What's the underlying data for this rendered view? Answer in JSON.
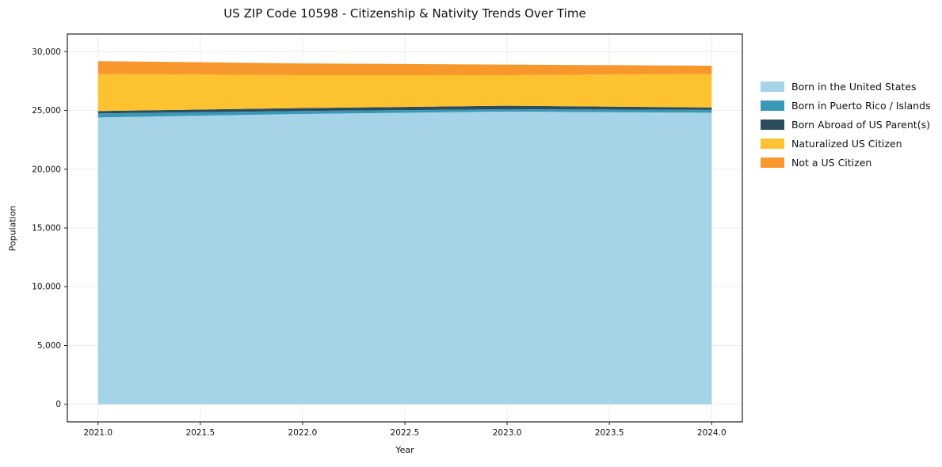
{
  "title": "US ZIP Code 10598 - Citizenship & Nativity Trends Over Time",
  "chart_data": {
    "type": "area",
    "stacked": true,
    "title": "US ZIP Code 10598 - Citizenship & Nativity Trends Over Time",
    "xlabel": "Year",
    "ylabel": "Population",
    "xlim": [
      2021,
      2024
    ],
    "ylim": [
      0,
      30000
    ],
    "grid": true,
    "legend_position": "right",
    "x": [
      2021,
      2022,
      2023,
      2024
    ],
    "series": [
      {
        "name": "Born in the United States",
        "color": "#a5d3e7",
        "values": [
          24400,
          24700,
          24900,
          24800
        ]
      },
      {
        "name": "Born in Puerto Rico / Islands",
        "color": "#3b99b8",
        "values": [
          350,
          250,
          200,
          250
        ]
      },
      {
        "name": "Born Abroad of US Parent(s)",
        "color": "#2c4d5e",
        "values": [
          200,
          250,
          300,
          200
        ]
      },
      {
        "name": "Naturalized US Citizen",
        "color": "#fdc22f",
        "values": [
          3150,
          2800,
          2600,
          2850
        ]
      },
      {
        "name": "Not a US Citizen",
        "color": "#f8982c",
        "values": [
          1100,
          1000,
          900,
          700
        ]
      }
    ],
    "xticks": {
      "values": [
        2021,
        2021.5,
        2022,
        2022.5,
        2023,
        2023.5,
        2024
      ],
      "labels": [
        "2021.0",
        "2021.5",
        "2022.0",
        "2022.5",
        "2023.0",
        "2023.5",
        "2024.0"
      ]
    },
    "yticks": {
      "values": [
        0,
        5000,
        10000,
        15000,
        20000,
        25000,
        30000
      ],
      "labels": [
        "0",
        "5,000",
        "10,000",
        "15,000",
        "20,000",
        "25,000",
        "30,000"
      ]
    },
    "axis_color": "#222222",
    "grid_color": "#ececec"
  }
}
